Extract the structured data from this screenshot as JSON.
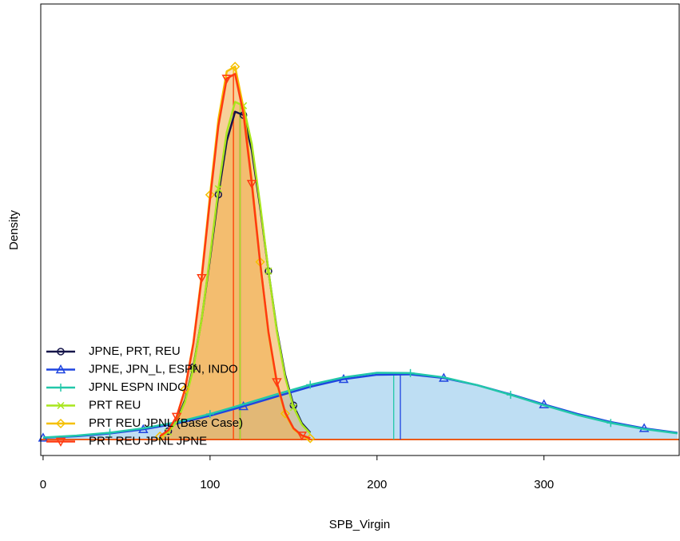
{
  "chart_data": {
    "type": "density",
    "x_label": "SPB_Virgin",
    "y_label": "Density",
    "xlim": [
      -1.4,
      381
    ],
    "ylim": [
      -0.00123,
      0.0336
    ],
    "xticks": [
      0,
      100,
      200,
      300
    ],
    "legend_position": "bottom-left",
    "series": [
      {
        "name": "JPNE, PRT, REU",
        "color": "#15154a",
        "marker": "circle",
        "fill": "#f0b050",
        "median": 118,
        "x": [
          70,
          75,
          80,
          85,
          90,
          95,
          100,
          105,
          110,
          115,
          120,
          125,
          130,
          135,
          140,
          145,
          150,
          155,
          160
        ],
        "values": [
          0.00026,
          0.00065,
          0.00148,
          0.00303,
          0.00559,
          0.00931,
          0.01397,
          0.0189,
          0.02303,
          0.02529,
          0.02503,
          0.02232,
          0.01794,
          0.01299,
          0.00848,
          0.00499,
          0.00264,
          0.00126,
          0.00054
        ]
      },
      {
        "name": "JPNE, JPN_L, ESPN, INDO",
        "color": "#1f45e0",
        "marker": "triangle",
        "fill": "#8ec5ea",
        "median": 214,
        "x": [
          0,
          20,
          40,
          60,
          80,
          100,
          120,
          140,
          160,
          180,
          200,
          220,
          240,
          260,
          280,
          300,
          320,
          340,
          360,
          380
        ],
        "values": [
          0.000136,
          0.00026,
          0.00047,
          0.00079,
          0.00124,
          0.00184,
          0.00256,
          0.00333,
          0.00407,
          0.00466,
          0.005,
          0.00503,
          0.00475,
          0.0042,
          0.00349,
          0.00271,
          0.00198,
          0.00135,
          0.00087,
          0.00052
        ]
      },
      {
        "name": "JPNL ESPN INDO",
        "color": "#22c7a9",
        "marker": "plus",
        "fill": "#8ec5ea",
        "median": 210,
        "x": [
          0,
          20,
          40,
          60,
          80,
          100,
          120,
          140,
          160,
          180,
          200,
          220,
          240,
          260,
          280,
          300,
          320,
          340,
          360,
          380
        ],
        "values": [
          0.00016,
          0.0003,
          0.00053,
          0.00087,
          0.00134,
          0.00197,
          0.00272,
          0.0035,
          0.00423,
          0.0048,
          0.00515,
          0.00513,
          0.0048,
          0.0042,
          0.00345,
          0.00265,
          0.0019,
          0.00128,
          0.00081,
          0.00048
        ]
      },
      {
        "name": "PRT REU",
        "color": "#a8e61d",
        "marker": "cross",
        "fill": "#f0b050",
        "median": 118,
        "x": [
          70,
          75,
          80,
          85,
          90,
          95,
          100,
          105,
          110,
          115,
          120,
          125,
          130,
          135,
          140,
          145,
          150,
          155,
          160
        ],
        "values": [
          0.00022,
          0.00058,
          0.00137,
          0.0029,
          0.00548,
          0.0093,
          0.01415,
          0.01935,
          0.0237,
          0.02605,
          0.02575,
          0.0228,
          0.01815,
          0.013,
          0.00835,
          0.0048,
          0.00248,
          0.00115,
          0.00047
        ]
      },
      {
        "name": "PRT REU JPNL (Base Case)",
        "color": "#f5c000",
        "marker": "diamond",
        "fill": "#f0b050",
        "median": 114,
        "x": [
          70,
          75,
          80,
          85,
          90,
          95,
          100,
          105,
          110,
          115,
          120,
          125,
          130,
          135,
          140,
          145,
          150,
          155,
          160
        ],
        "values": [
          0.00025,
          0.0007,
          0.00176,
          0.00388,
          0.00748,
          0.01268,
          0.01888,
          0.0247,
          0.0284,
          0.02877,
          0.0256,
          0.02,
          0.0137,
          0.0082,
          0.00432,
          0.002,
          0.00082,
          0.00029,
          9e-05
        ]
      },
      {
        "name": "PRT REU JPNL JPNE",
        "color": "#ff3a10",
        "marker": "triangle-down",
        "fill": "#f0b050",
        "median": 114,
        "x": [
          70,
          75,
          80,
          85,
          90,
          95,
          100,
          105,
          110,
          115,
          120,
          125,
          130,
          135,
          140,
          145,
          150,
          155,
          160
        ],
        "values": [
          0.000255,
          0.000716,
          0.00177,
          0.00386,
          0.00739,
          0.01247,
          0.01852,
          0.0242,
          0.02785,
          0.02821,
          0.02515,
          0.01974,
          0.01364,
          0.00829,
          0.00444,
          0.00209,
          0.00087,
          0.00032,
          0.0001
        ]
      }
    ]
  }
}
